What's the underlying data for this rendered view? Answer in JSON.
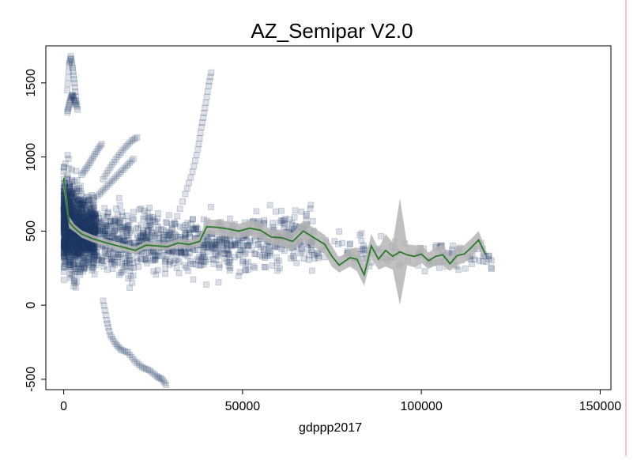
{
  "chart_data": {
    "type": "scatter",
    "title": "AZ_Semipar V2.0",
    "xlabel": "gdppp2017",
    "ylabel": "",
    "xlim": [
      -5000,
      153000
    ],
    "ylim": [
      -570,
      1750
    ],
    "x_ticks": [
      0,
      50000,
      100000,
      150000
    ],
    "x_tick_labels": [
      "0",
      "50000",
      "100000",
      "150000"
    ],
    "y_ticks": [
      -500,
      0,
      500,
      1000,
      1500
    ],
    "y_tick_labels": [
      "-500",
      "0",
      "500",
      "1000",
      "1500"
    ],
    "grid": false,
    "legend": "none",
    "colors": {
      "points_fill": "#1f3b63",
      "points_edge": "#1f3b63",
      "fit_line": "#2a7a2a",
      "ci_band": "#b5b5b5"
    },
    "fit_series": {
      "x": [
        0,
        1500,
        3000,
        5000,
        8000,
        12000,
        16000,
        20000,
        23000,
        26000,
        29000,
        32000,
        35000,
        38000,
        40000,
        43000,
        46000,
        49000,
        52000,
        55000,
        58000,
        61000,
        64000,
        67000,
        70000,
        73000,
        75000,
        77000,
        80000,
        82000,
        84000,
        86000,
        88000,
        90000,
        92000,
        94000,
        96000,
        98000,
        100000,
        102000,
        104000,
        106000,
        108000,
        110000,
        112000,
        114000,
        116000,
        118000
      ],
      "y": [
        860,
        560,
        520,
        480,
        450,
        420,
        395,
        370,
        405,
        400,
        395,
        420,
        410,
        430,
        530,
        525,
        515,
        500,
        520,
        505,
        460,
        455,
        430,
        500,
        455,
        410,
        330,
        270,
        320,
        310,
        205,
        400,
        310,
        370,
        330,
        360,
        340,
        330,
        345,
        300,
        330,
        340,
        280,
        335,
        345,
        390,
        440,
        340
      ],
      "ci_lower": [
        780,
        520,
        495,
        455,
        425,
        395,
        370,
        345,
        380,
        375,
        370,
        390,
        380,
        395,
        480,
        475,
        465,
        450,
        470,
        450,
        410,
        400,
        370,
        430,
        390,
        345,
        260,
        220,
        260,
        230,
        130,
        320,
        240,
        260,
        240,
        0,
        270,
        255,
        285,
        245,
        270,
        270,
        230,
        275,
        285,
        330,
        380,
        300
      ],
      "ci_upper": [
        940,
        600,
        545,
        505,
        475,
        445,
        420,
        395,
        430,
        425,
        420,
        450,
        440,
        465,
        580,
        575,
        565,
        550,
        570,
        560,
        510,
        510,
        490,
        570,
        520,
        475,
        400,
        320,
        380,
        390,
        280,
        480,
        380,
        480,
        420,
        720,
        410,
        405,
        405,
        355,
        390,
        410,
        330,
        395,
        405,
        450,
        500,
        380
      ]
    },
    "curves": [
      {
        "x": [
          1000,
          1500,
          2000,
          2500,
          3000,
          3500,
          4000
        ],
        "y": [
          1450,
          1620,
          1680,
          1600,
          1500,
          1380,
          1300
        ]
      },
      {
        "x": [
          1000,
          1500,
          2000,
          2500,
          3000,
          3500
        ],
        "y": [
          1300,
          1350,
          1400,
          1420,
          1380,
          1340
        ]
      },
      {
        "x": [
          5000,
          6500,
          8000,
          9500,
          11000
        ],
        "y": [
          880,
          930,
          990,
          1050,
          1100
        ]
      },
      {
        "x": [
          11000,
          13000,
          15000,
          17000,
          19000,
          21000
        ],
        "y": [
          850,
          930,
          1000,
          1060,
          1110,
          1140
        ]
      },
      {
        "x": [
          10000,
          12000,
          14000,
          16000,
          18000,
          20000
        ],
        "y": [
          750,
          800,
          850,
          900,
          950,
          1000
        ]
      },
      {
        "x": [
          25000,
          28000,
          31000,
          34000,
          36000,
          37500,
          38500,
          39500,
          40500,
          41500
        ],
        "y": [
          300,
          420,
          550,
          750,
          900,
          1050,
          1200,
          1330,
          1480,
          1600
        ]
      },
      {
        "x": [
          11000,
          12000,
          13000,
          14500,
          16000,
          18000,
          20000,
          22000,
          24000,
          26000,
          27500,
          29000
        ],
        "y": [
          30,
          -100,
          -200,
          -260,
          -300,
          -320,
          -380,
          -420,
          -440,
          -480,
          -500,
          -550
        ]
      }
    ]
  }
}
